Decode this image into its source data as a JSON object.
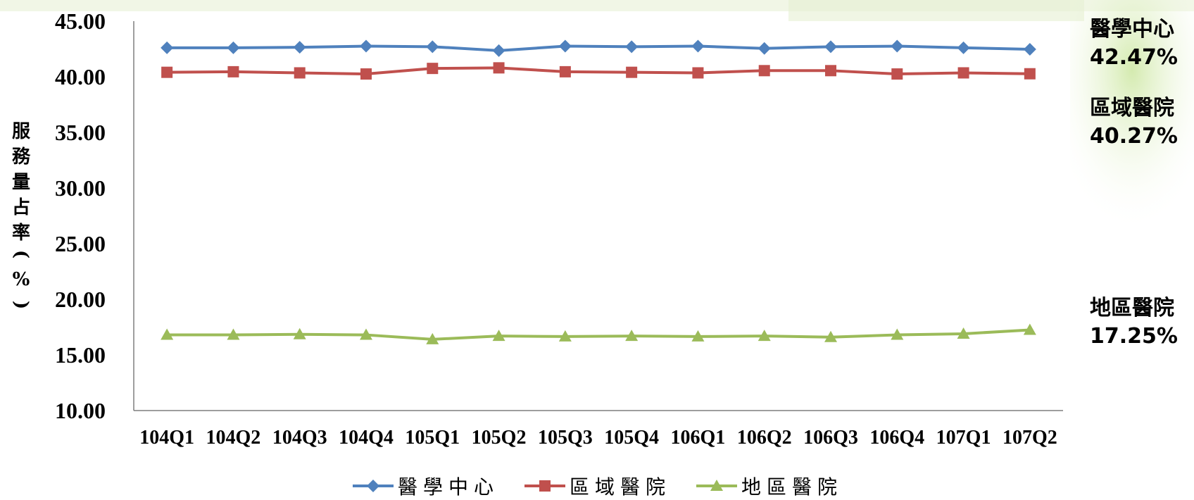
{
  "chart_data": {
    "type": "line",
    "ylabel": "服務量占率(%)",
    "ylim": [
      10,
      45
    ],
    "yticks": [
      "45.00",
      "40.00",
      "35.00",
      "30.00",
      "25.00",
      "20.00",
      "15.00",
      "10.00"
    ],
    "categories": [
      "104Q1",
      "104Q2",
      "104Q3",
      "104Q4",
      "105Q1",
      "105Q2",
      "105Q3",
      "105Q4",
      "106Q1",
      "106Q2",
      "106Q3",
      "106Q4",
      "107Q1",
      "107Q2"
    ],
    "series": [
      {
        "name": "醫學中心",
        "color": "#4F81BD",
        "marker": "diamond",
        "values": [
          42.6,
          42.6,
          42.65,
          42.75,
          42.7,
          42.35,
          42.75,
          42.7,
          42.75,
          42.55,
          42.7,
          42.75,
          42.6,
          42.47
        ],
        "callout": [
          "醫學中心",
          "42.47%"
        ]
      },
      {
        "name": "區域醫院",
        "color": "#C0504D",
        "marker": "square",
        "values": [
          40.4,
          40.45,
          40.35,
          40.25,
          40.75,
          40.8,
          40.45,
          40.4,
          40.35,
          40.55,
          40.55,
          40.25,
          40.35,
          40.27
        ],
        "callout": [
          "區域醫院",
          "40.27%"
        ]
      },
      {
        "name": "地區醫院",
        "color": "#9BBB59",
        "marker": "triangle",
        "values": [
          16.8,
          16.8,
          16.85,
          16.8,
          16.4,
          16.7,
          16.65,
          16.7,
          16.65,
          16.7,
          16.6,
          16.8,
          16.9,
          17.25
        ],
        "callout": [
          "地區醫院",
          "17.25%"
        ]
      }
    ],
    "legend_position": "bottom",
    "grid": false
  }
}
